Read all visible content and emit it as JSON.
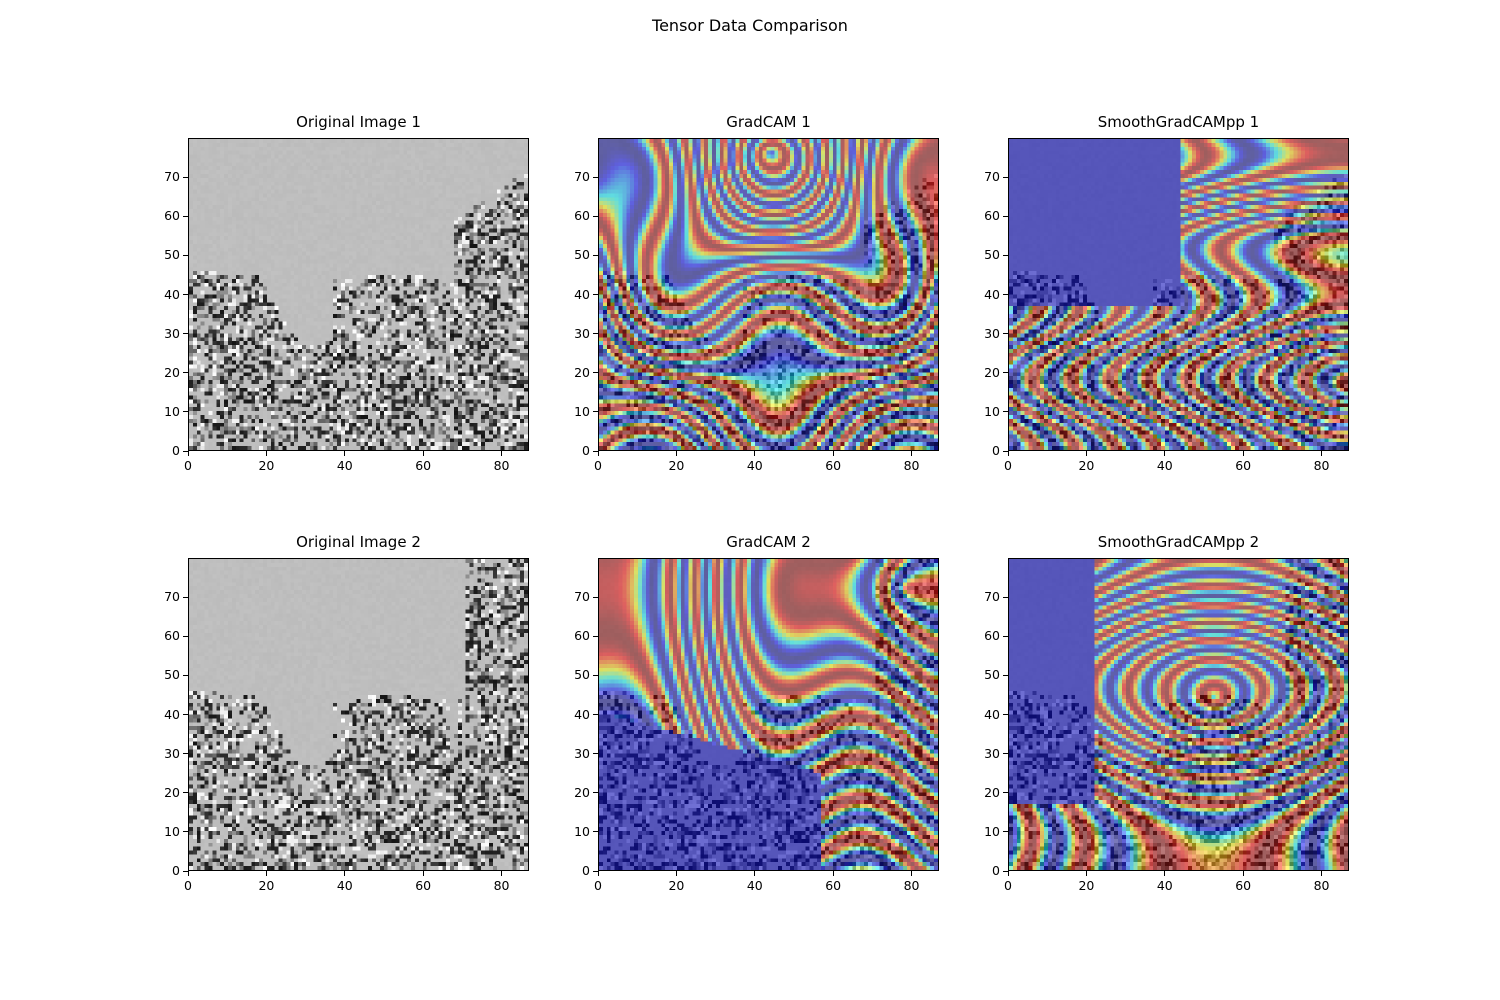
{
  "figure": {
    "title": "Tensor Data Comparison"
  },
  "chart_data": [
    {
      "type": "heatmap",
      "title": "Original Image 1",
      "colormap": "gray",
      "image_shape": [
        80,
        87
      ],
      "xlim": [
        0,
        87
      ],
      "ylim": [
        0,
        80
      ],
      "x_ticks": [
        "0",
        "20",
        "40",
        "60",
        "80"
      ],
      "y_ticks": [
        "0",
        "10",
        "20",
        "30",
        "40",
        "50",
        "60",
        "70"
      ],
      "grid": false
    },
    {
      "type": "heatmap",
      "title": "GradCAM 1",
      "colormap": "jet overlay on gray",
      "image_shape": [
        80,
        87
      ],
      "xlim": [
        0,
        87
      ],
      "ylim": [
        0,
        80
      ],
      "x_ticks": [
        "0",
        "20",
        "40",
        "60",
        "80"
      ],
      "y_ticks": [
        "0",
        "10",
        "20",
        "30",
        "40",
        "50",
        "60",
        "70"
      ],
      "grid": false
    },
    {
      "type": "heatmap",
      "title": "SmoothGradCAMpp 1",
      "colormap": "jet overlay on gray",
      "image_shape": [
        80,
        87
      ],
      "xlim": [
        0,
        87
      ],
      "ylim": [
        0,
        80
      ],
      "x_ticks": [
        "0",
        "20",
        "40",
        "60",
        "80"
      ],
      "y_ticks": [
        "0",
        "10",
        "20",
        "30",
        "40",
        "50",
        "60",
        "70"
      ],
      "grid": false
    },
    {
      "type": "heatmap",
      "title": "Original Image 2",
      "colormap": "gray",
      "image_shape": [
        80,
        87
      ],
      "xlim": [
        0,
        87
      ],
      "ylim": [
        0,
        80
      ],
      "x_ticks": [
        "0",
        "20",
        "40",
        "60",
        "80"
      ],
      "y_ticks": [
        "0",
        "10",
        "20",
        "30",
        "40",
        "50",
        "60",
        "70"
      ],
      "grid": false
    },
    {
      "type": "heatmap",
      "title": "GradCAM 2",
      "colormap": "jet overlay on gray",
      "image_shape": [
        80,
        87
      ],
      "xlim": [
        0,
        87
      ],
      "ylim": [
        0,
        80
      ],
      "x_ticks": [
        "0",
        "20",
        "40",
        "60",
        "80"
      ],
      "y_ticks": [
        "0",
        "10",
        "20",
        "30",
        "40",
        "50",
        "60",
        "70"
      ],
      "grid": false
    },
    {
      "type": "heatmap",
      "title": "SmoothGradCAMpp 2",
      "colormap": "jet overlay on gray",
      "image_shape": [
        80,
        87
      ],
      "xlim": [
        0,
        87
      ],
      "ylim": [
        0,
        80
      ],
      "x_ticks": [
        "0",
        "20",
        "40",
        "60",
        "80"
      ],
      "y_ticks": [
        "0",
        "10",
        "20",
        "30",
        "40",
        "50",
        "60",
        "70"
      ],
      "grid": false
    }
  ]
}
